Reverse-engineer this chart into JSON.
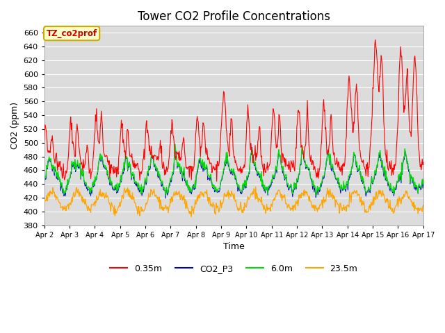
{
  "title": "Tower CO2 Profile Concentrations",
  "xlabel": "Time",
  "ylabel": "CO2 (ppm)",
  "ylim": [
    380,
    670
  ],
  "yticks": [
    380,
    400,
    420,
    440,
    460,
    480,
    500,
    520,
    540,
    560,
    580,
    600,
    620,
    640,
    660
  ],
  "date_labels": [
    "Apr 2",
    "Apr 3",
    "Apr 4",
    "Apr 5",
    "Apr 6",
    "Apr 7",
    "Apr 8",
    "Apr 9",
    "Apr 10",
    "Apr 11",
    "Apr 12",
    "Apr 13",
    "Apr 14",
    "Apr 15",
    "Apr 16",
    "Apr 17"
  ],
  "series_colors": {
    "0.35m": "#FF0000",
    "CO2_P3": "#0000CC",
    "6.0m": "#00DD00",
    "23.5m": "#FFA500"
  },
  "legend_label_box": "TZ_co2prof",
  "legend_box_facecolor": "#FFFFCC",
  "legend_box_edgecolor": "#CCAA00",
  "background_color": "#DCDCDC",
  "grid_color": "#FFFFFF",
  "title_fontsize": 12,
  "axis_label_fontsize": 9,
  "tick_fontsize": 8
}
